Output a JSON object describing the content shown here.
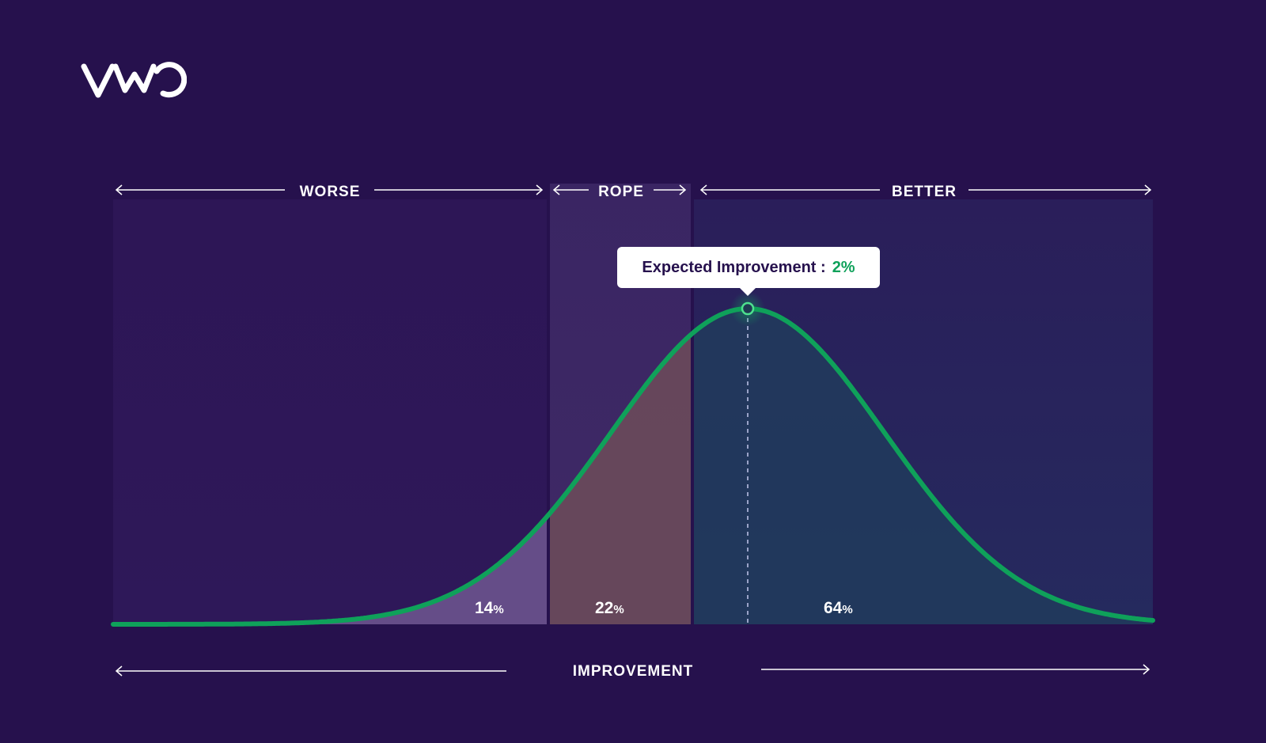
{
  "brand": {
    "logo_text": "VWO",
    "logo_icon": "vwo-logo"
  },
  "colors": {
    "background": "#26114d",
    "curve": "#0fa15a",
    "worse_fill": "#6e5790",
    "rope_fill": "#6a4a5a",
    "better_fill": "#213a5c"
  },
  "zones": {
    "worse": "WORSE",
    "rope": "ROPE",
    "better": "BETTER"
  },
  "chart_data": {
    "type": "area",
    "distribution": "normal",
    "x_axis_label": "IMPROVEMENT",
    "expected_improvement": {
      "label": "Expected Improvement :",
      "value": "2%"
    },
    "regions": [
      {
        "name": "WORSE",
        "probability": 14,
        "probability_label": "14"
      },
      {
        "name": "ROPE",
        "probability": 22,
        "probability_label": "22"
      },
      {
        "name": "BETTER",
        "probability": 64,
        "probability_label": "64"
      }
    ],
    "unit": "%"
  }
}
